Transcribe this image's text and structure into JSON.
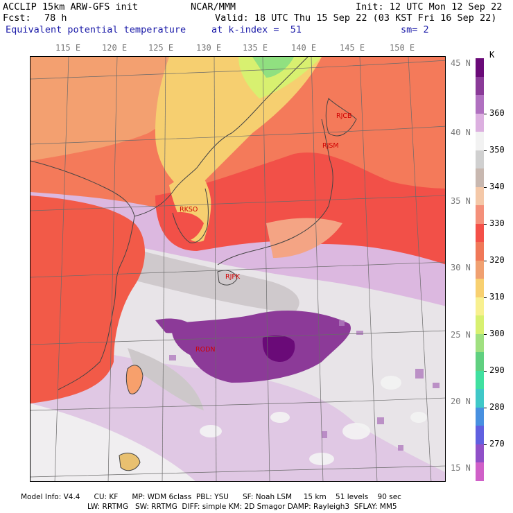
{
  "header": {
    "model": "ACCLIP 15km ARW-GFS init",
    "org": "NCAR/MMM",
    "init": "Init: 12 UTC Mon 12 Sep 22",
    "fcst_label": "Fcst:",
    "fcst_value": "78 h",
    "valid": "Valid: 18 UTC Thu 15 Sep 22 (03 KST Fri 16 Sep 22)",
    "field": "Equivalent potential temperature",
    "level": "at k-index =  51",
    "smooth": "sm= 2"
  },
  "map": {
    "lon_labels": [
      "115 E",
      "120 E",
      "125 E",
      "130 E",
      "135 E",
      "140 E",
      "145 E",
      "150 E"
    ],
    "lat_labels": [
      "45 N",
      "40 N",
      "35 N",
      "30 N",
      "25 N",
      "20 N",
      "15 N"
    ],
    "stations": [
      {
        "id": "RJCB"
      },
      {
        "id": "RJSM"
      },
      {
        "id": "RKSO"
      },
      {
        "id": "RJFK"
      },
      {
        "id": "RODN"
      }
    ]
  },
  "colorbar": {
    "unit": "K",
    "labels": [
      "360",
      "350",
      "340",
      "330",
      "320",
      "310",
      "300",
      "290",
      "280",
      "270"
    ],
    "colors": [
      "#6a0a78",
      "#8a3a98",
      "#b070c0",
      "#dcb0e0",
      "#f2f2f2",
      "#d0d0d0",
      "#c8b8b0",
      "#f4c8a8",
      "#f4907a",
      "#f45048",
      "#f07858",
      "#f0a070",
      "#f8d070",
      "#f8f090",
      "#d8f070",
      "#a0e080",
      "#60d080",
      "#40e0a0",
      "#40c8c8",
      "#4890e0",
      "#6060e0",
      "#9050c8",
      "#d060c8"
    ]
  },
  "footer": {
    "line1": "Model Info: V4.4      CU: KF      MP: WDM 6class  PBL: YSU      SF: Noah LSM     15 km    51 levels    90 sec",
    "line2": "LW: RRTMG   SW: RRTMG  DIFF: simple KM: 2D Smagor DAMP: Rayleigh3  SFLAY: MM5"
  }
}
